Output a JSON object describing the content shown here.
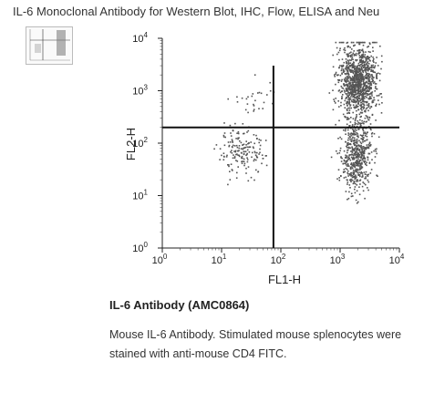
{
  "page": {
    "title": "IL-6 Monoclonal Antibody for Western Blot, IHC, Flow, ELISA and Neu"
  },
  "caption": {
    "title": "IL-6 Antibody (AMC0864)",
    "text": "Mouse IL-6 Antibody. Stimulated mouse splenocytes were stained with anti-mouse CD4 FITC."
  },
  "chart_data": {
    "type": "scatter",
    "title": "",
    "xlabel": "FL1-H",
    "ylabel": "FL2-H",
    "x_scale": "log",
    "y_scale": "log",
    "xlim": [
      1,
      10000
    ],
    "ylim": [
      1,
      10000
    ],
    "x_ticks": [
      {
        "value": 1,
        "base": "10",
        "exp": "0"
      },
      {
        "value": 10,
        "base": "10",
        "exp": "1"
      },
      {
        "value": 100,
        "base": "10",
        "exp": "2"
      },
      {
        "value": 1000,
        "base": "10",
        "exp": "3"
      },
      {
        "value": 10000,
        "base": "10",
        "exp": "4"
      }
    ],
    "y_ticks": [
      {
        "value": 1,
        "base": "10",
        "exp": "0"
      },
      {
        "value": 10,
        "base": "10",
        "exp": "1"
      },
      {
        "value": 100,
        "base": "10",
        "exp": "2"
      },
      {
        "value": 1000,
        "base": "10",
        "exp": "3"
      },
      {
        "value": 10000,
        "base": "10",
        "exp": "4"
      }
    ],
    "quadrant_gates": {
      "x": 75,
      "y": 200
    },
    "point_color": "#555555",
    "populations": [
      {
        "x_center": 2000,
        "y_center": 1500,
        "x_spread_log": 0.16,
        "y_spread_log": 0.35,
        "count": 1100
      },
      {
        "x_center": 1900,
        "y_center": 60,
        "x_spread_log": 0.13,
        "y_spread_log": 0.35,
        "count": 550
      },
      {
        "x_center": 22,
        "y_center": 65,
        "x_spread_log": 0.2,
        "y_spread_log": 0.2,
        "count": 170
      },
      {
        "x_center": 35,
        "y_center": 600,
        "x_spread_log": 0.2,
        "y_spread_log": 0.25,
        "count": 30
      }
    ],
    "grid": false,
    "legend": "none"
  }
}
